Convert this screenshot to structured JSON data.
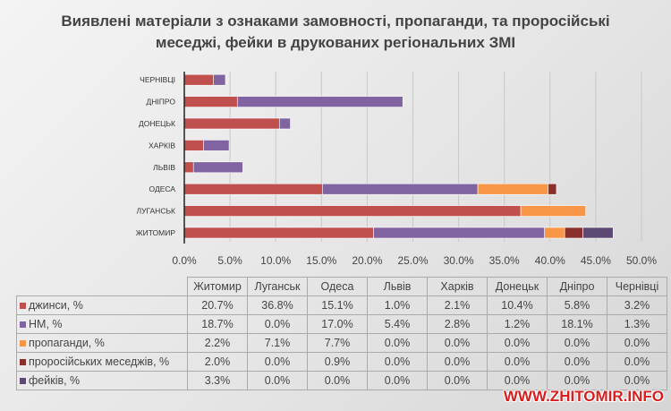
{
  "chart_data": {
    "type": "bar",
    "orientation": "horizontal",
    "stacked": true,
    "title": "Виявлені матеріали з ознаками замовності, пропаганди, та проросійські меседжі, фейки в друкованих регіональних ЗМІ",
    "categories": [
      "Житомир",
      "Луганськ",
      "Одеса",
      "Львів",
      "Харків",
      "Донецьк",
      "Дніпро",
      "Чернівці"
    ],
    "axis_labels": [
      "ЖИТОМИР",
      "ЛУГАНСЬК",
      "ОДЕСА",
      "ЛЬВІВ",
      "ХАРКІВ",
      "ДОНЕЦЬК",
      "ДНІПРО",
      "ЧЕРНІВЦІ"
    ],
    "xlim": [
      0,
      50
    ],
    "xticks": [
      "0.0%",
      "5.0%",
      "10.0%",
      "15.0%",
      "20.0%",
      "25.0%",
      "30.0%",
      "35.0%",
      "40.0%",
      "45.0%",
      "50.0%"
    ],
    "grid": true,
    "series": [
      {
        "name": "джинси, %",
        "color": "#c0504d",
        "values": [
          20.7,
          36.8,
          15.1,
          1.0,
          2.1,
          10.4,
          5.8,
          3.2
        ],
        "labels": [
          "20.7%",
          "36.8%",
          "15.1%",
          "1.0%",
          "2.1%",
          "10.4%",
          "5.8%",
          "3.2%"
        ]
      },
      {
        "name": "НМ, %",
        "color": "#8064a2",
        "values": [
          18.7,
          0.0,
          17.0,
          5.4,
          2.8,
          1.2,
          18.1,
          1.3
        ],
        "labels": [
          "18.7%",
          "0.0%",
          "17.0%",
          "5.4%",
          "2.8%",
          "1.2%",
          "18.1%",
          "1.3%"
        ]
      },
      {
        "name": "пропаганди, %",
        "color": "#f79646",
        "values": [
          2.2,
          7.1,
          7.7,
          0.0,
          0.0,
          0.0,
          0.0,
          0.0
        ],
        "labels": [
          "2.2%",
          "7.1%",
          "7.7%",
          "0.0%",
          "0.0%",
          "0.0%",
          "0.0%",
          "0.0%"
        ]
      },
      {
        "name": "проросійських меседжів, %",
        "color": "#8b2f2c",
        "values": [
          2.0,
          0.0,
          0.9,
          0.0,
          0.0,
          0.0,
          0.0,
          0.0
        ],
        "labels": [
          "2.0%",
          "0.0%",
          "0.9%",
          "0.0%",
          "0.0%",
          "0.0%",
          "0.0%",
          "0.0%"
        ]
      },
      {
        "name": "фейків, %",
        "color": "#5c4a73",
        "values": [
          3.3,
          0.0,
          0.0,
          0.0,
          0.0,
          0.0,
          0.0,
          0.0
        ],
        "labels": [
          "3.3%",
          "0.0%",
          "0.0%",
          "0.0%",
          "0.0%",
          "0.0%",
          "0.0%",
          "0.0%"
        ]
      }
    ],
    "legend": "data-table-below"
  },
  "watermark": "WWW.ZHITOMIR.INFO"
}
